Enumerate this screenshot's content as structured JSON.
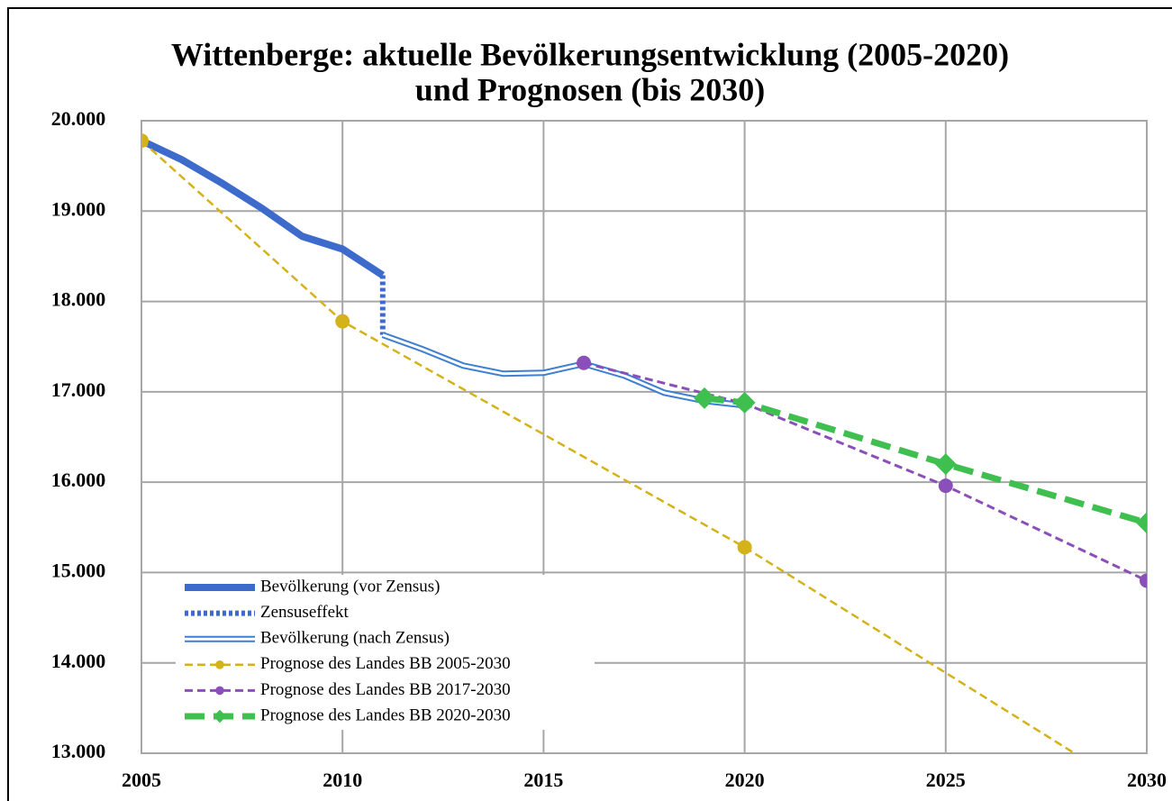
{
  "chart_data": {
    "type": "line",
    "title": [
      "Wittenberge: aktuelle Bevölkerungsentwicklung (2005-2020)",
      "und Prognosen (bis 2030)"
    ],
    "xlim": [
      2005,
      2030
    ],
    "xticks": [
      2005,
      2010,
      2015,
      2020,
      2025,
      2030
    ],
    "ylim": [
      13000,
      20000
    ],
    "yticks": [
      {
        "value": 13000,
        "label": "13.000"
      },
      {
        "value": 14000,
        "label": "14.000"
      },
      {
        "value": 15000,
        "label": "15.000"
      },
      {
        "value": 16000,
        "label": "16.000"
      },
      {
        "value": 17000,
        "label": "17.000"
      },
      {
        "value": 18000,
        "label": "18.000"
      },
      {
        "value": 19000,
        "label": "19.000"
      },
      {
        "value": 20000,
        "label": "20.000"
      }
    ],
    "grid": true,
    "legend": "lower left",
    "series": [
      {
        "name": "Bevölkerung (vor Zensus)",
        "color": "#3d6bcc",
        "style": "solid",
        "width": 8,
        "x": [
          2005,
          2006,
          2007,
          2008,
          2009,
          2010,
          2011
        ],
        "values": [
          19780,
          19570,
          19310,
          19030,
          18720,
          18580,
          18290
        ]
      },
      {
        "name": "Zensuseffekt",
        "color": "#3d6bcc",
        "style": "dotted",
        "width": 6,
        "x": [
          2011,
          2011
        ],
        "values": [
          18290,
          17630
        ]
      },
      {
        "name": "Bevölkerung (nach Zensus)",
        "color": "#3d7fd0",
        "style": "double",
        "width": 7,
        "x": [
          2011,
          2012,
          2013,
          2014,
          2015,
          2016,
          2017,
          2018,
          2019,
          2020
        ],
        "values": [
          17630,
          17470,
          17290,
          17200,
          17210,
          17310,
          17180,
          16990,
          16900,
          16850
        ]
      },
      {
        "name": "Prognose des Landes BB 2005-2030",
        "color": "#d4b21a",
        "style": "dashed",
        "width": 2.5,
        "marker": "circle",
        "x": [
          2005,
          2010,
          2020,
          2030
        ],
        "values": [
          19780,
          17780,
          15280,
          12500
        ]
      },
      {
        "name": "Prognose des Landes BB 2017-2030",
        "color": "#8a4fb8",
        "style": "dashed",
        "width": 3,
        "marker": "circle",
        "x": [
          2016,
          2020,
          2025,
          2030
        ],
        "values": [
          17320,
          16870,
          15960,
          14910
        ]
      },
      {
        "name": "Prognose des Landes BB 2020-2030",
        "color": "#3fbf4f",
        "style": "dashed",
        "width": 7,
        "marker": "diamond",
        "x": [
          2019,
          2020,
          2025,
          2030
        ],
        "values": [
          16930,
          16880,
          16200,
          15550
        ]
      }
    ]
  }
}
